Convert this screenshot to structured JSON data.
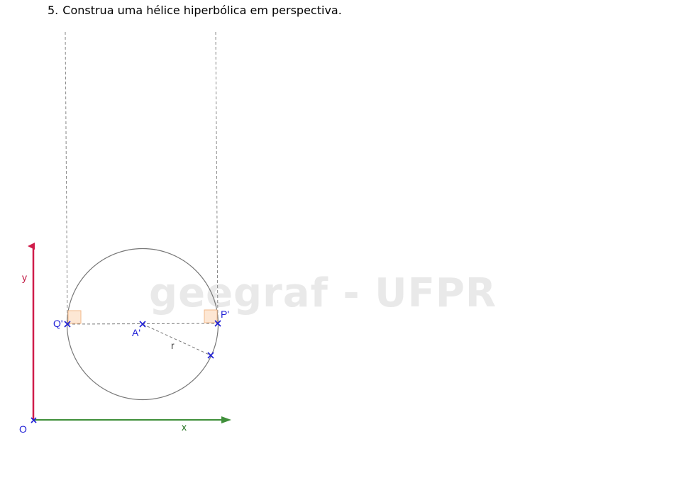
{
  "exercise": {
    "number": "5.",
    "text": "Construa uma hélice hiperbólica em perspectiva."
  },
  "watermark": "geegraf - UFPR",
  "labels": {
    "origin": "O",
    "x_axis": "x",
    "y_axis": "y",
    "point_a": "A'",
    "point_p": "P'",
    "point_q": "Q'",
    "radius": "r"
  },
  "colors": {
    "x_axis": "#3f8f3a",
    "y_axis": "#d01c4a",
    "points": "#1f1fd6",
    "circle": "#777777",
    "dashed": "#777777",
    "right_angle_fill": "#fde7d4",
    "right_angle_stroke": "#f2b98a",
    "watermark": "#e9e9e9"
  }
}
